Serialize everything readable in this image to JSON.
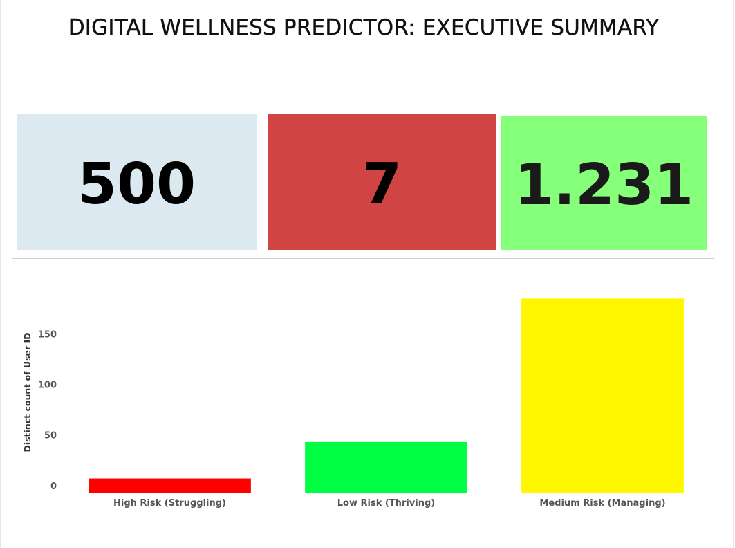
{
  "title": "DIGITAL WELLNESS PREDICTOR: EXECUTIVE SUMMARY",
  "kpis": [
    {
      "value": "500",
      "bg": "#dce9f0",
      "fg": "#000000"
    },
    {
      "value": "7",
      "bg": "#d14444",
      "fg": "#000000"
    },
    {
      "value": "1.231",
      "bg": "#86ff7b",
      "fg": "#1a1a1a"
    }
  ],
  "chart_data": {
    "type": "bar",
    "categories": [
      "High Risk (Struggling)",
      "Low Risk (Thriving)",
      "Medium Risk (Managing)"
    ],
    "values": [
      7,
      43,
      185
    ],
    "colors": [
      "#ff0000",
      "#00ff44",
      "#fff700"
    ],
    "ylabel": "Distinct count of User ID",
    "yticks": [
      0,
      50,
      100,
      150
    ],
    "ylim": [
      -7,
      190
    ],
    "grid": false
  }
}
